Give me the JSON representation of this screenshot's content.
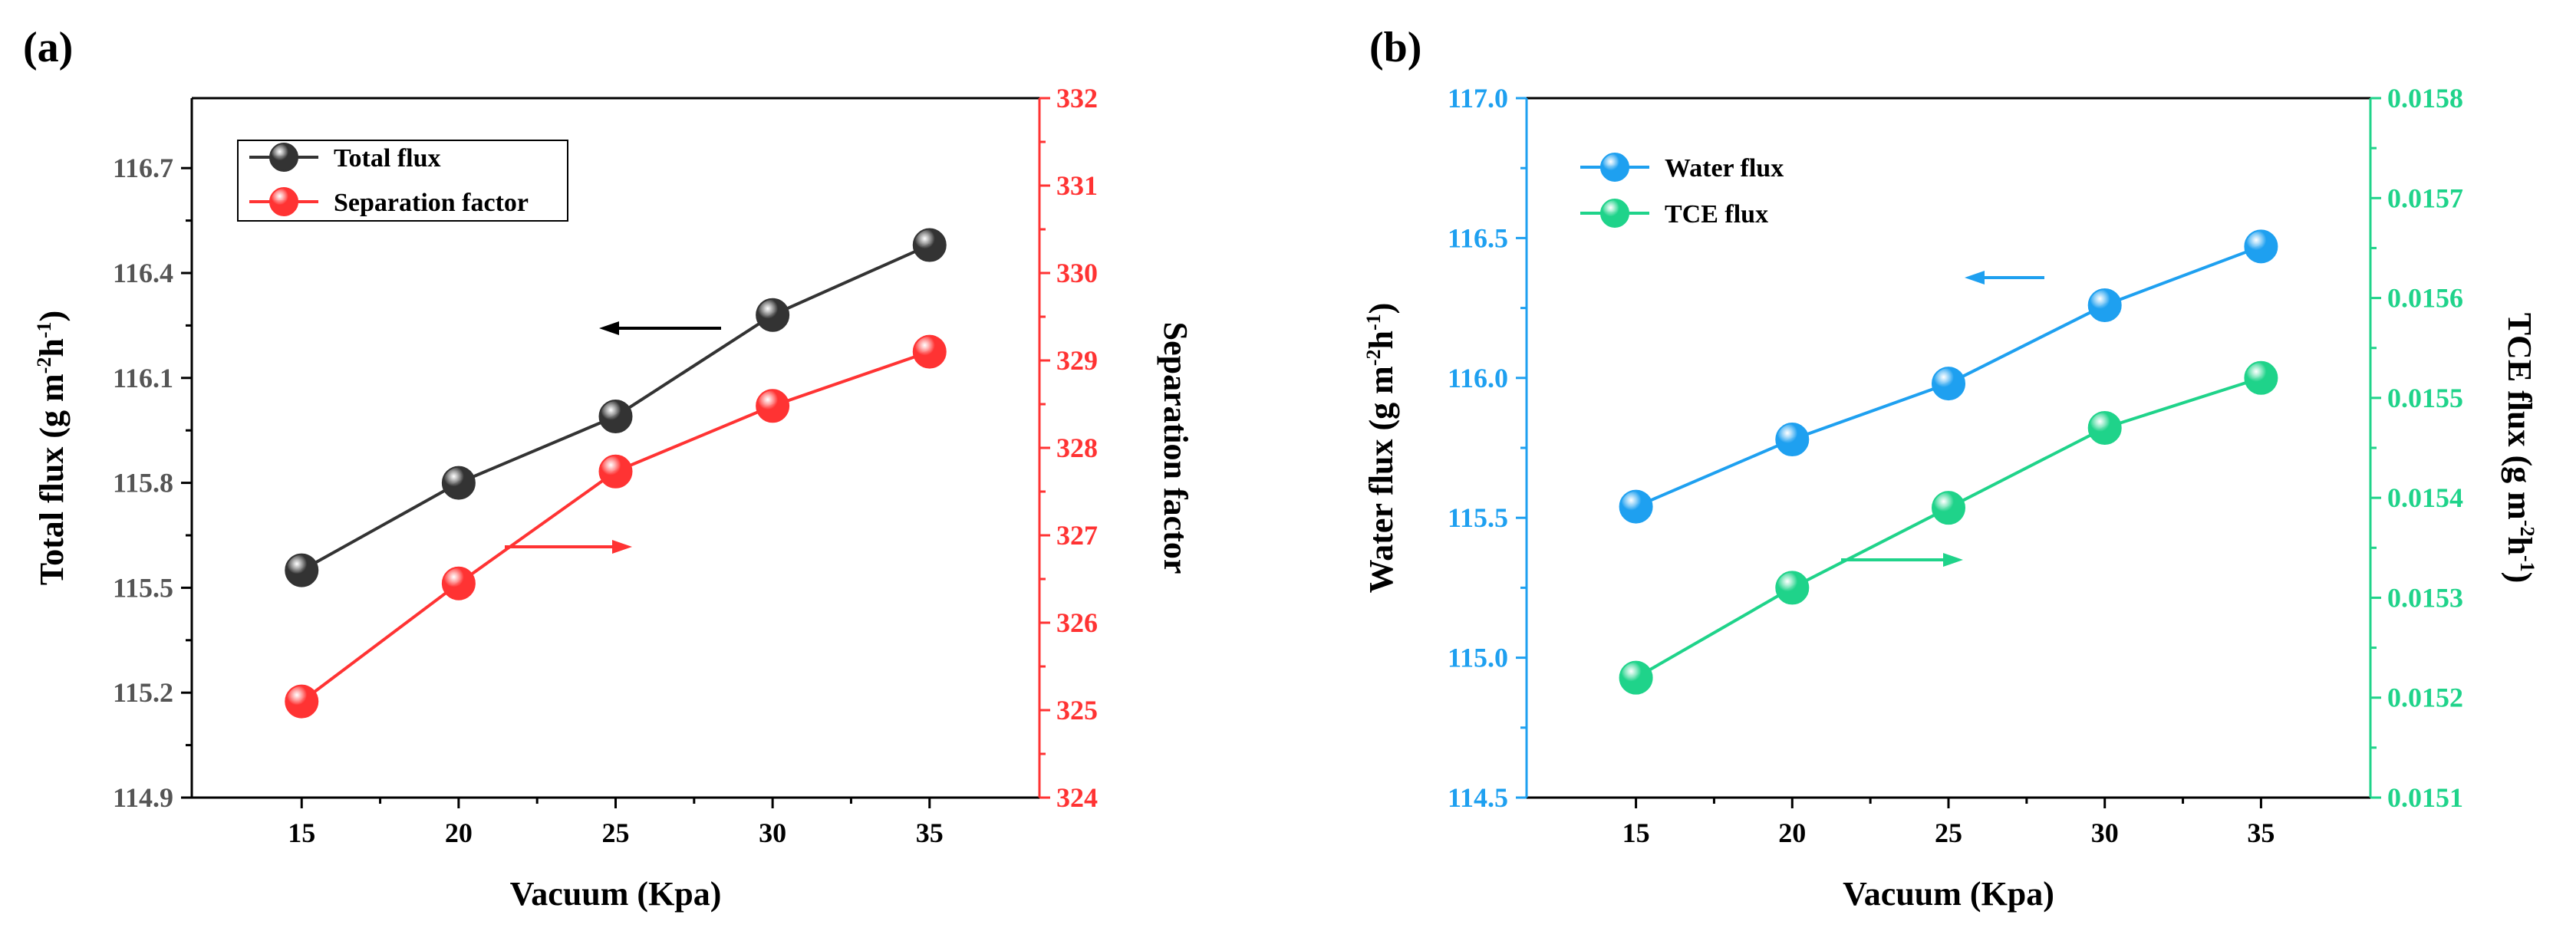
{
  "chart_data": [
    {
      "panel": "(a)",
      "type": "line",
      "x": [
        15,
        20,
        25,
        30,
        35
      ],
      "xticks": [
        "15",
        "20",
        "25",
        "30",
        "35"
      ],
      "xlim": [
        11.5,
        38.5
      ],
      "xlabel": "Vacuum (Kpa)",
      "left_axis": {
        "label_main": "Total flux (g m",
        "label_sup1": "-2",
        "label_mid": "h",
        "label_sup2": "-1",
        "label_end": ")",
        "ylim": [
          114.9,
          116.9
        ],
        "ticks": [
          114.9,
          115.2,
          115.5,
          115.8,
          116.1,
          116.4,
          116.7
        ],
        "tick_labels": [
          "114.9",
          "115.2",
          "115.5",
          "115.8",
          "116.1",
          "116.4",
          "116.7"
        ],
        "color": "#333333"
      },
      "right_axis": {
        "label": "Separation factor",
        "ylim": [
          324,
          332
        ],
        "ticks": [
          324,
          325,
          326,
          327,
          328,
          329,
          330,
          331,
          332
        ],
        "tick_labels": [
          "324",
          "325",
          "326",
          "327",
          "328",
          "329",
          "330",
          "331",
          "332"
        ],
        "color": "#ff3333"
      },
      "series": [
        {
          "name": "Total flux",
          "axis": "left",
          "color": "#333333",
          "values": [
            115.55,
            115.8,
            115.99,
            116.28,
            116.48
          ]
        },
        {
          "name": "Separation factor",
          "axis": "right",
          "color": "#ff3333",
          "values": [
            325.1,
            326.45,
            327.73,
            328.48,
            329.1
          ]
        }
      ],
      "legend": "top-left"
    },
    {
      "panel": "(b)",
      "type": "line",
      "x": [
        15,
        20,
        25,
        30,
        35
      ],
      "xticks": [
        "15",
        "20",
        "25",
        "30",
        "35"
      ],
      "xlim": [
        11.5,
        38.5
      ],
      "xlabel": "Vacuum (Kpa)",
      "left_axis": {
        "label_main": "Water flux (g m",
        "label_sup1": "-2",
        "label_mid": "h",
        "label_sup2": "-1",
        "label_end": ")",
        "ylim": [
          114.5,
          117.0
        ],
        "ticks": [
          114.5,
          115.0,
          115.5,
          116.0,
          116.5,
          117.0
        ],
        "tick_labels": [
          "114.5",
          "115.0",
          "115.5",
          "116.0",
          "116.5",
          "117.0"
        ],
        "color": "#1ea0f0"
      },
      "right_axis": {
        "label_main": "TCE flux (g m",
        "label_sup1": "-2",
        "label_mid": "h",
        "label_sup2": "-1",
        "label_end": ")",
        "ylim": [
          0.0151,
          0.0158
        ],
        "ticks": [
          0.0151,
          0.0152,
          0.0153,
          0.0154,
          0.0155,
          0.0156,
          0.0157,
          0.0158
        ],
        "tick_labels": [
          "0.0151",
          "0.0152",
          "0.0153",
          "0.0154",
          "0.0155",
          "0.0156",
          "0.0157",
          "0.0158"
        ],
        "color": "#1fd38a"
      },
      "series": [
        {
          "name": "Water flux",
          "axis": "left",
          "color": "#1ea0f0",
          "values": [
            115.54,
            115.78,
            115.98,
            116.26,
            116.47
          ]
        },
        {
          "name": "TCE flux",
          "axis": "right",
          "color": "#1fd38a",
          "values": [
            0.01522,
            0.01531,
            0.01539,
            0.01547,
            0.01552
          ]
        }
      ],
      "legend": "top-left"
    }
  ]
}
